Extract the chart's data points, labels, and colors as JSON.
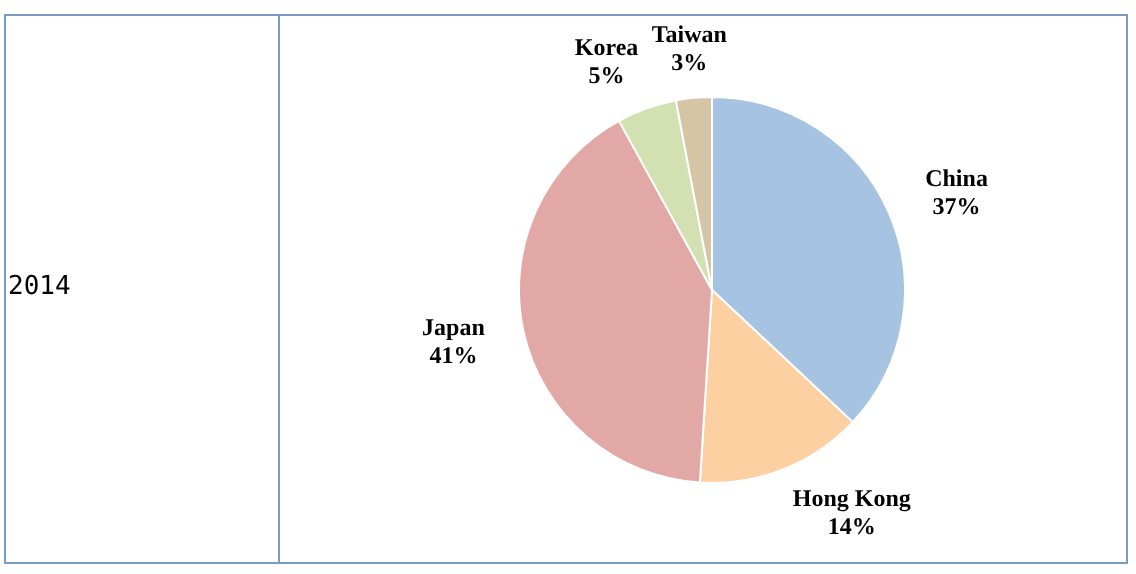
{
  "chart_data": {
    "type": "pie",
    "categories": [
      "China",
      "Hong Kong",
      "Japan",
      "Korea",
      "Taiwan"
    ],
    "values": [
      37,
      14,
      41,
      5,
      3
    ],
    "colors": [
      "#a7c3e2",
      "#fdd0a2",
      "#e2a8a6",
      "#d3e0b2",
      "#d6c5a5"
    ],
    "value_labels": [
      "37%",
      "14%",
      "41%",
      "5%",
      "3%"
    ],
    "legend": false,
    "annotations": [
      "2014"
    ]
  }
}
